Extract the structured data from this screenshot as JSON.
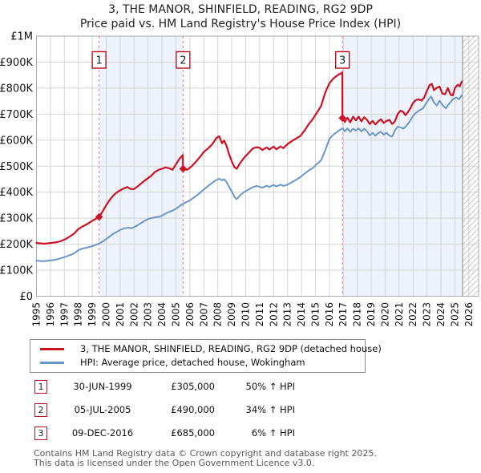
{
  "title": {
    "line1": "3, THE MANOR, SHINFIELD, READING, RG2 9DP",
    "line2": "Price paid vs. HM Land Registry's House Price Index (HPI)"
  },
  "legend": {
    "items": [
      {
        "label": "3, THE MANOR, SHINFIELD, READING, RG2 9DP (detached house)"
      },
      {
        "label": "HPI: Average price, detached house, Wokingham"
      }
    ]
  },
  "transactions": [
    {
      "num": "1",
      "date": "30-JUN-1999",
      "price": "£305,000",
      "hpi": "50% ↑ HPI"
    },
    {
      "num": "2",
      "date": "05-JUL-2005",
      "price": "£490,000",
      "hpi": "34% ↑ HPI"
    },
    {
      "num": "3",
      "date": "09-DEC-2016",
      "price": "£685,000",
      "hpi": "6% ↑ HPI"
    }
  ],
  "footer": {
    "line1": "Contains HM Land Registry data © Crown copyright and database right 2025.",
    "line2": "This data is licensed under the Open Government Licence v3.0."
  },
  "colors": {
    "series_price": "#cc1122",
    "series_hpi": "#6b96c8",
    "sale_dash": "#ef8585",
    "shade": "#eef3fb",
    "grid": "#d4d4d4",
    "border": "#ababab",
    "hatch": "#c6c6c6",
    "data_end_line": "#9a9a9a",
    "marker_box_border": "#bb1122",
    "axis_text": "#111111"
  },
  "chart_data": {
    "type": "line",
    "title": "3, THE MANOR, SHINFIELD, READING, RG2 9DP — Price paid vs. HPI",
    "units": "GBP thousands",
    "x_range": [
      1995,
      2026.7
    ],
    "y_max_k": 1000,
    "x_ticks": [
      "1995",
      "1996",
      "1997",
      "1998",
      "1999",
      "2000",
      "2001",
      "2002",
      "2003",
      "2004",
      "2005",
      "2006",
      "2007",
      "2008",
      "2009",
      "2010",
      "2011",
      "2012",
      "2013",
      "2014",
      "2015",
      "2016",
      "2017",
      "2018",
      "2019",
      "2020",
      "2021",
      "2022",
      "2023",
      "2024",
      "2025",
      "2026"
    ],
    "y_ticks": [
      {
        "v": 0,
        "label": "£0"
      },
      {
        "v": 100,
        "label": "£100K"
      },
      {
        "v": 200,
        "label": "£200K"
      },
      {
        "v": 300,
        "label": "£300K"
      },
      {
        "v": 400,
        "label": "£400K"
      },
      {
        "v": 500,
        "label": "£500K"
      },
      {
        "v": 600,
        "label": "£600K"
      },
      {
        "v": 700,
        "label": "£700K"
      },
      {
        "v": 800,
        "label": "£800K"
      },
      {
        "v": 900,
        "label": "£900K"
      },
      {
        "v": 1000,
        "label": "£1M"
      }
    ],
    "sales": [
      {
        "n": "1",
        "year": 1999.49,
        "price_k": 305
      },
      {
        "n": "2",
        "year": 2005.51,
        "price_k": 490
      },
      {
        "n": "3",
        "year": 2016.94,
        "price_k": 685
      }
    ],
    "shaded_periods": [
      [
        1999.49,
        2005.51
      ],
      [
        2016.94,
        2025.55
      ]
    ],
    "hatch_start": 2025.55,
    "series": [
      {
        "name": "price-paid",
        "colorKey": "series_price",
        "width": 2.2,
        "points": [
          [
            1995.0,
            205
          ],
          [
            1995.3,
            203
          ],
          [
            1995.6,
            202
          ],
          [
            1995.9,
            204
          ],
          [
            1996.2,
            206
          ],
          [
            1996.5,
            208
          ],
          [
            1996.8,
            213
          ],
          [
            1997.1,
            220
          ],
          [
            1997.4,
            230
          ],
          [
            1997.7,
            241
          ],
          [
            1998.0,
            258
          ],
          [
            1998.3,
            268
          ],
          [
            1998.6,
            276
          ],
          [
            1998.9,
            287
          ],
          [
            1999.2,
            296
          ],
          [
            1999.49,
            305
          ],
          [
            1999.7,
            322
          ],
          [
            2000.0,
            350
          ],
          [
            2000.3,
            374
          ],
          [
            2000.6,
            392
          ],
          [
            2000.9,
            404
          ],
          [
            2001.2,
            413
          ],
          [
            2001.5,
            420
          ],
          [
            2001.75,
            412
          ],
          [
            2002.0,
            412
          ],
          [
            2002.3,
            424
          ],
          [
            2002.6,
            438
          ],
          [
            2002.9,
            450
          ],
          [
            2003.2,
            462
          ],
          [
            2003.5,
            478
          ],
          [
            2003.8,
            487
          ],
          [
            2004.0,
            490
          ],
          [
            2004.25,
            495
          ],
          [
            2004.5,
            492
          ],
          [
            2004.75,
            486
          ],
          [
            2005.0,
            507
          ],
          [
            2005.25,
            528
          ],
          [
            2005.49,
            543
          ],
          [
            2005.51,
            490
          ],
          [
            2005.8,
            486
          ],
          [
            2006.1,
            498
          ],
          [
            2006.4,
            515
          ],
          [
            2006.7,
            534
          ],
          [
            2007.0,
            555
          ],
          [
            2007.3,
            568
          ],
          [
            2007.6,
            584
          ],
          [
            2007.9,
            608
          ],
          [
            2008.1,
            615
          ],
          [
            2008.3,
            588
          ],
          [
            2008.45,
            598
          ],
          [
            2008.6,
            582
          ],
          [
            2008.8,
            548
          ],
          [
            2009.0,
            518
          ],
          [
            2009.2,
            496
          ],
          [
            2009.35,
            490
          ],
          [
            2009.6,
            512
          ],
          [
            2009.9,
            533
          ],
          [
            2010.2,
            550
          ],
          [
            2010.5,
            568
          ],
          [
            2010.8,
            573
          ],
          [
            2011.0,
            570
          ],
          [
            2011.2,
            562
          ],
          [
            2011.5,
            572
          ],
          [
            2011.7,
            564
          ],
          [
            2012.0,
            575
          ],
          [
            2012.2,
            565
          ],
          [
            2012.5,
            576
          ],
          [
            2012.7,
            569
          ],
          [
            2013.0,
            585
          ],
          [
            2013.3,
            596
          ],
          [
            2013.6,
            606
          ],
          [
            2013.9,
            615
          ],
          [
            2014.2,
            635
          ],
          [
            2014.5,
            660
          ],
          [
            2014.8,
            680
          ],
          [
            2015.1,
            705
          ],
          [
            2015.4,
            730
          ],
          [
            2015.7,
            782
          ],
          [
            2016.0,
            818
          ],
          [
            2016.3,
            838
          ],
          [
            2016.6,
            850
          ],
          [
            2016.93,
            860
          ],
          [
            2016.94,
            685
          ],
          [
            2017.1,
            670
          ],
          [
            2017.3,
            686
          ],
          [
            2017.5,
            668
          ],
          [
            2017.7,
            690
          ],
          [
            2017.9,
            676
          ],
          [
            2018.1,
            690
          ],
          [
            2018.3,
            672
          ],
          [
            2018.5,
            688
          ],
          [
            2018.7,
            678
          ],
          [
            2018.9,
            662
          ],
          [
            2019.1,
            674
          ],
          [
            2019.3,
            660
          ],
          [
            2019.5,
            672
          ],
          [
            2019.7,
            680
          ],
          [
            2019.9,
            666
          ],
          [
            2020.1,
            674
          ],
          [
            2020.3,
            678
          ],
          [
            2020.5,
            662
          ],
          [
            2020.7,
            672
          ],
          [
            2020.9,
            700
          ],
          [
            2021.1,
            713
          ],
          [
            2021.3,
            708
          ],
          [
            2021.45,
            696
          ],
          [
            2021.6,
            705
          ],
          [
            2021.8,
            722
          ],
          [
            2022.0,
            743
          ],
          [
            2022.2,
            754
          ],
          [
            2022.4,
            757
          ],
          [
            2022.6,
            752
          ],
          [
            2022.8,
            764
          ],
          [
            2023.0,
            790
          ],
          [
            2023.2,
            812
          ],
          [
            2023.35,
            816
          ],
          [
            2023.5,
            792
          ],
          [
            2023.7,
            801
          ],
          [
            2023.9,
            806
          ],
          [
            2024.1,
            779
          ],
          [
            2024.3,
            777
          ],
          [
            2024.5,
            800
          ],
          [
            2024.7,
            774
          ],
          [
            2024.85,
            772
          ],
          [
            2025.0,
            800
          ],
          [
            2025.2,
            813
          ],
          [
            2025.35,
            807
          ],
          [
            2025.5,
            825
          ]
        ]
      },
      {
        "name": "hpi",
        "colorKey": "series_hpi",
        "width": 2,
        "points": [
          [
            1995.0,
            137
          ],
          [
            1995.3,
            135
          ],
          [
            1995.6,
            135
          ],
          [
            1995.9,
            137
          ],
          [
            1996.2,
            139
          ],
          [
            1996.5,
            142
          ],
          [
            1996.8,
            147
          ],
          [
            1997.1,
            152
          ],
          [
            1997.4,
            158
          ],
          [
            1997.7,
            165
          ],
          [
            1998.0,
            177
          ],
          [
            1998.3,
            183
          ],
          [
            1998.6,
            187
          ],
          [
            1998.9,
            191
          ],
          [
            1999.2,
            196
          ],
          [
            1999.5,
            203
          ],
          [
            1999.8,
            212
          ],
          [
            2000.1,
            224
          ],
          [
            2000.4,
            236
          ],
          [
            2000.7,
            246
          ],
          [
            2001.0,
            255
          ],
          [
            2001.3,
            261
          ],
          [
            2001.6,
            264
          ],
          [
            2001.8,
            261
          ],
          [
            2002.1,
            268
          ],
          [
            2002.4,
            278
          ],
          [
            2002.7,
            288
          ],
          [
            2003.0,
            297
          ],
          [
            2003.3,
            301
          ],
          [
            2003.6,
            304
          ],
          [
            2003.9,
            307
          ],
          [
            2004.2,
            316
          ],
          [
            2004.5,
            324
          ],
          [
            2004.8,
            330
          ],
          [
            2005.1,
            340
          ],
          [
            2005.4,
            352
          ],
          [
            2005.7,
            361
          ],
          [
            2006.0,
            368
          ],
          [
            2006.3,
            380
          ],
          [
            2006.6,
            392
          ],
          [
            2006.9,
            406
          ],
          [
            2007.2,
            419
          ],
          [
            2007.5,
            432
          ],
          [
            2007.8,
            444
          ],
          [
            2008.1,
            452
          ],
          [
            2008.3,
            445
          ],
          [
            2008.45,
            450
          ],
          [
            2008.6,
            441
          ],
          [
            2008.8,
            422
          ],
          [
            2009.0,
            403
          ],
          [
            2009.2,
            382
          ],
          [
            2009.35,
            373
          ],
          [
            2009.6,
            388
          ],
          [
            2009.9,
            401
          ],
          [
            2010.2,
            410
          ],
          [
            2010.5,
            419
          ],
          [
            2010.8,
            424
          ],
          [
            2011.0,
            421
          ],
          [
            2011.2,
            417
          ],
          [
            2011.5,
            425
          ],
          [
            2011.7,
            420
          ],
          [
            2012.0,
            428
          ],
          [
            2012.2,
            422
          ],
          [
            2012.5,
            429
          ],
          [
            2012.7,
            424
          ],
          [
            2013.0,
            429
          ],
          [
            2013.3,
            438
          ],
          [
            2013.6,
            447
          ],
          [
            2013.9,
            457
          ],
          [
            2014.2,
            470
          ],
          [
            2014.5,
            483
          ],
          [
            2014.8,
            492
          ],
          [
            2015.1,
            508
          ],
          [
            2015.4,
            522
          ],
          [
            2015.7,
            560
          ],
          [
            2016.0,
            604
          ],
          [
            2016.3,
            622
          ],
          [
            2016.6,
            633
          ],
          [
            2016.94,
            646
          ],
          [
            2017.1,
            634
          ],
          [
            2017.3,
            645
          ],
          [
            2017.5,
            632
          ],
          [
            2017.7,
            644
          ],
          [
            2017.9,
            637
          ],
          [
            2018.1,
            645
          ],
          [
            2018.3,
            634
          ],
          [
            2018.5,
            644
          ],
          [
            2018.7,
            634
          ],
          [
            2018.9,
            618
          ],
          [
            2019.1,
            628
          ],
          [
            2019.3,
            617
          ],
          [
            2019.5,
            627
          ],
          [
            2019.7,
            632
          ],
          [
            2019.9,
            621
          ],
          [
            2020.1,
            628
          ],
          [
            2020.3,
            617
          ],
          [
            2020.5,
            614
          ],
          [
            2020.7,
            637
          ],
          [
            2020.9,
            652
          ],
          [
            2021.1,
            649
          ],
          [
            2021.3,
            644
          ],
          [
            2021.5,
            654
          ],
          [
            2021.7,
            667
          ],
          [
            2021.9,
            684
          ],
          [
            2022.1,
            700
          ],
          [
            2022.3,
            709
          ],
          [
            2022.5,
            716
          ],
          [
            2022.7,
            721
          ],
          [
            2022.9,
            738
          ],
          [
            2023.1,
            755
          ],
          [
            2023.3,
            768
          ],
          [
            2023.5,
            745
          ],
          [
            2023.7,
            733
          ],
          [
            2023.9,
            751
          ],
          [
            2024.1,
            736
          ],
          [
            2024.35,
            722
          ],
          [
            2024.5,
            734
          ],
          [
            2024.7,
            747
          ],
          [
            2024.9,
            759
          ],
          [
            2025.1,
            764
          ],
          [
            2025.3,
            757
          ],
          [
            2025.5,
            773
          ]
        ]
      }
    ],
    "legend_position": "bottom",
    "grid": true
  }
}
